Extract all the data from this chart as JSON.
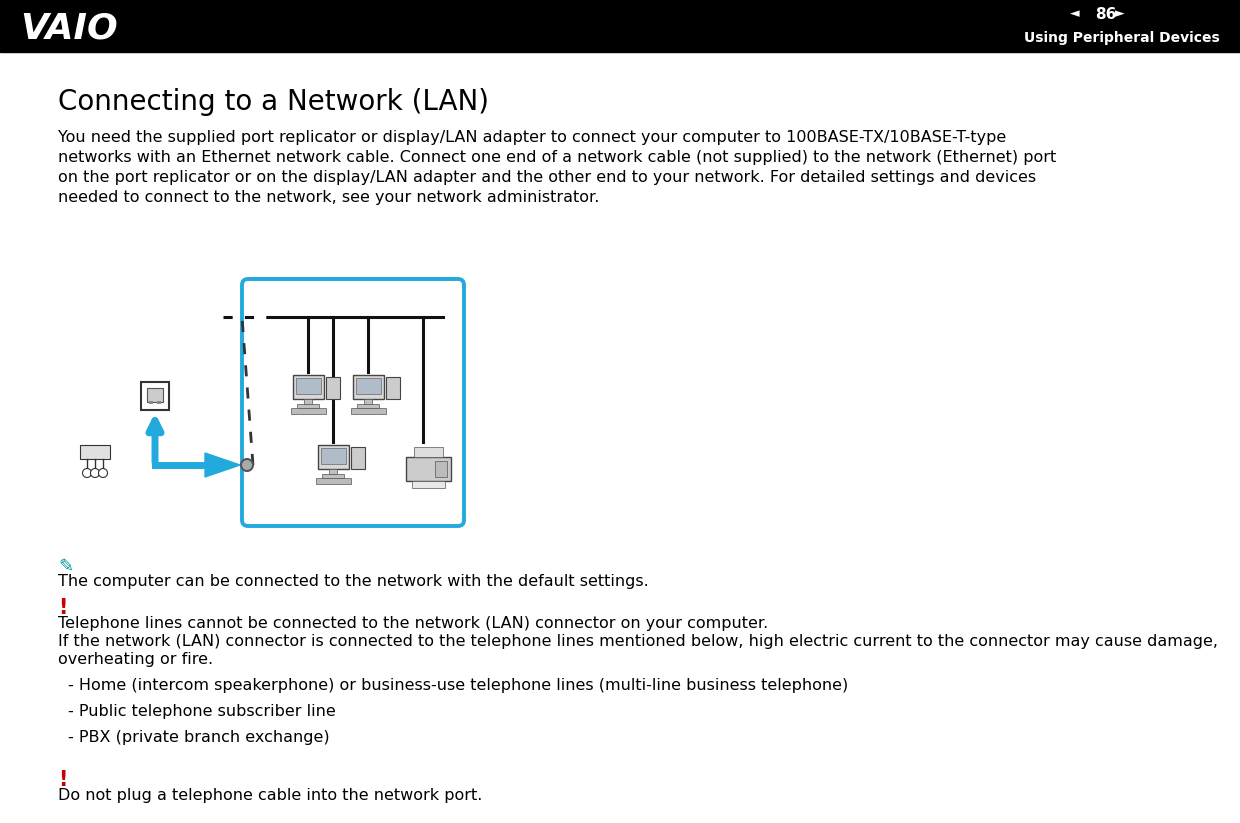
{
  "bg_color": "#ffffff",
  "header_bg": "#000000",
  "header_text_color": "#ffffff",
  "header_page_num": "86",
  "header_title": "Using Peripheral Devices",
  "title": "Connecting to a Network (LAN)",
  "title_fontsize": 20,
  "body_text_lines": [
    "You need the supplied port replicator or display/LAN adapter to connect your computer to 100BASE-TX/10BASE-T-type",
    "networks with an Ethernet network cable. Connect one end of a network cable (not supplied) to the network (Ethernet) port",
    "on the port replicator or on the display/LAN adapter and the other end to your network. For detailed settings and devices",
    "needed to connect to the network, see your network administrator."
  ],
  "body_fontsize": 11.5,
  "note_icon_color": "#009999",
  "note_text": "The computer can be connected to the network with the default settings.",
  "warning_color": "#cc0000",
  "warning1_line1": "Telephone lines cannot be connected to the network (LAN) connector on your computer.",
  "warning1_line2": "If the network (LAN) connector is connected to the telephone lines mentioned below, high electric current to the connector may cause damage,",
  "warning1_line3": "overheating or fire.",
  "bullet1": "- Home (intercom speakerphone) or business-use telephone lines (multi-line business telephone)",
  "bullet2": "- Public telephone subscriber line",
  "bullet3": "- PBX (private branch exchange)",
  "warning2_text": "Do not plug a telephone cable into the network port.",
  "box_color": "#22aadd",
  "arrow_color": "#22aadd",
  "text_fontsize": 11.5
}
